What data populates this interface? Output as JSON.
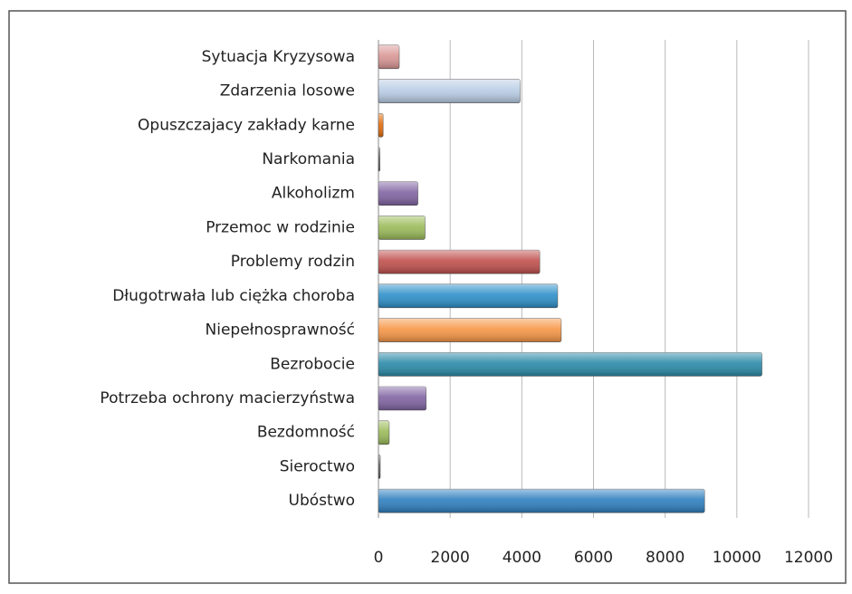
{
  "chart_data": {
    "type": "barh",
    "categories": [
      "Sytuacja Kryzysowa",
      "Zdarzenia losowe",
      "Opuszczajacy zakłady karne",
      "Narkomania",
      "Alkoholizm",
      "Przemoc w rodzinie",
      "Problemy rodzin",
      "Długotrwała lub ciężka choroba",
      "Niepełnosprawność",
      "Bezrobocie",
      "Potrzeba ochrony macierzyństwa",
      "Bezdomność",
      "Sieroctwo",
      "Ubóstwo"
    ],
    "values": [
      580,
      3950,
      130,
      40,
      1100,
      1300,
      4500,
      5000,
      5100,
      10700,
      1330,
      300,
      50,
      9100
    ],
    "colors": [
      "#d99694",
      "#b9cde5",
      "#e46c0a",
      "#595959",
      "#8064a2",
      "#9bbb59",
      "#c0504d",
      "#2c8fc9",
      "#f79646",
      "#2a8aa8",
      "#8064a2",
      "#9bbb59",
      "#595959",
      "#2e7fc0"
    ],
    "xlim": [
      0,
      12000
    ],
    "xticks": [
      0,
      2000,
      4000,
      6000,
      8000,
      10000,
      12000
    ],
    "grid": true
  }
}
